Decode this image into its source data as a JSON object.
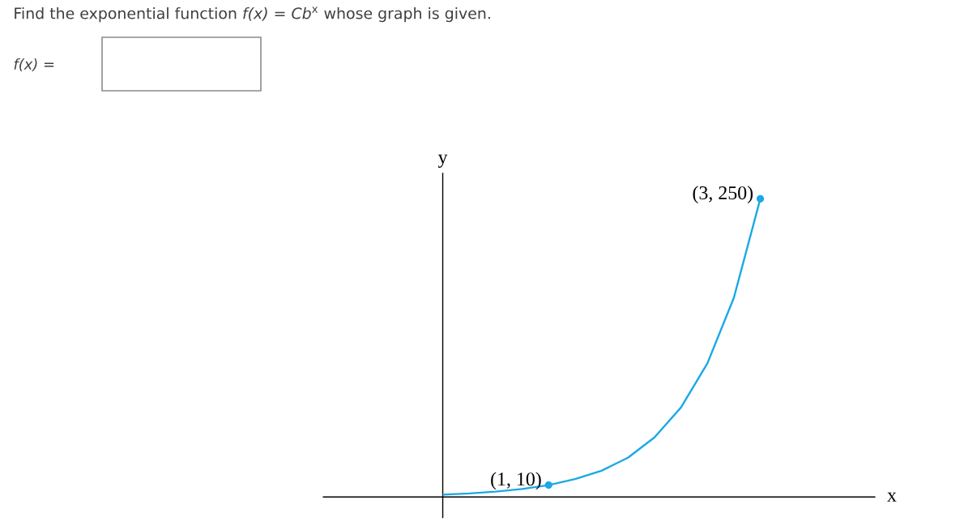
{
  "chart_data": {
    "type": "line",
    "title": "Find the exponential function *f(x)* = *Cb*$^{x}$ whose graph is given.",
    "annotations": [
      "f(x) =",
      "x",
      "y"
    ],
    "categories": [
      null,
      null,
      null,
      null,
      null,
      null,
      null,
      null,
      null,
      null,
      null,
      null,
      null
    ],
    "series": [
      {
        "color": "#1aa8e6",
        "values": [
          2,
          3,
          4.5,
          6.7,
          10,
          15,
          22,
          33,
          50,
          75,
          112,
          167,
          250
        ],
        "value_labels": [
          null,
          null,
          null,
          null,
          "(1, 10)",
          null,
          null,
          null,
          null,
          null,
          null,
          null,
          "(3, 250)"
        ]
      }
    ]
  }
}
